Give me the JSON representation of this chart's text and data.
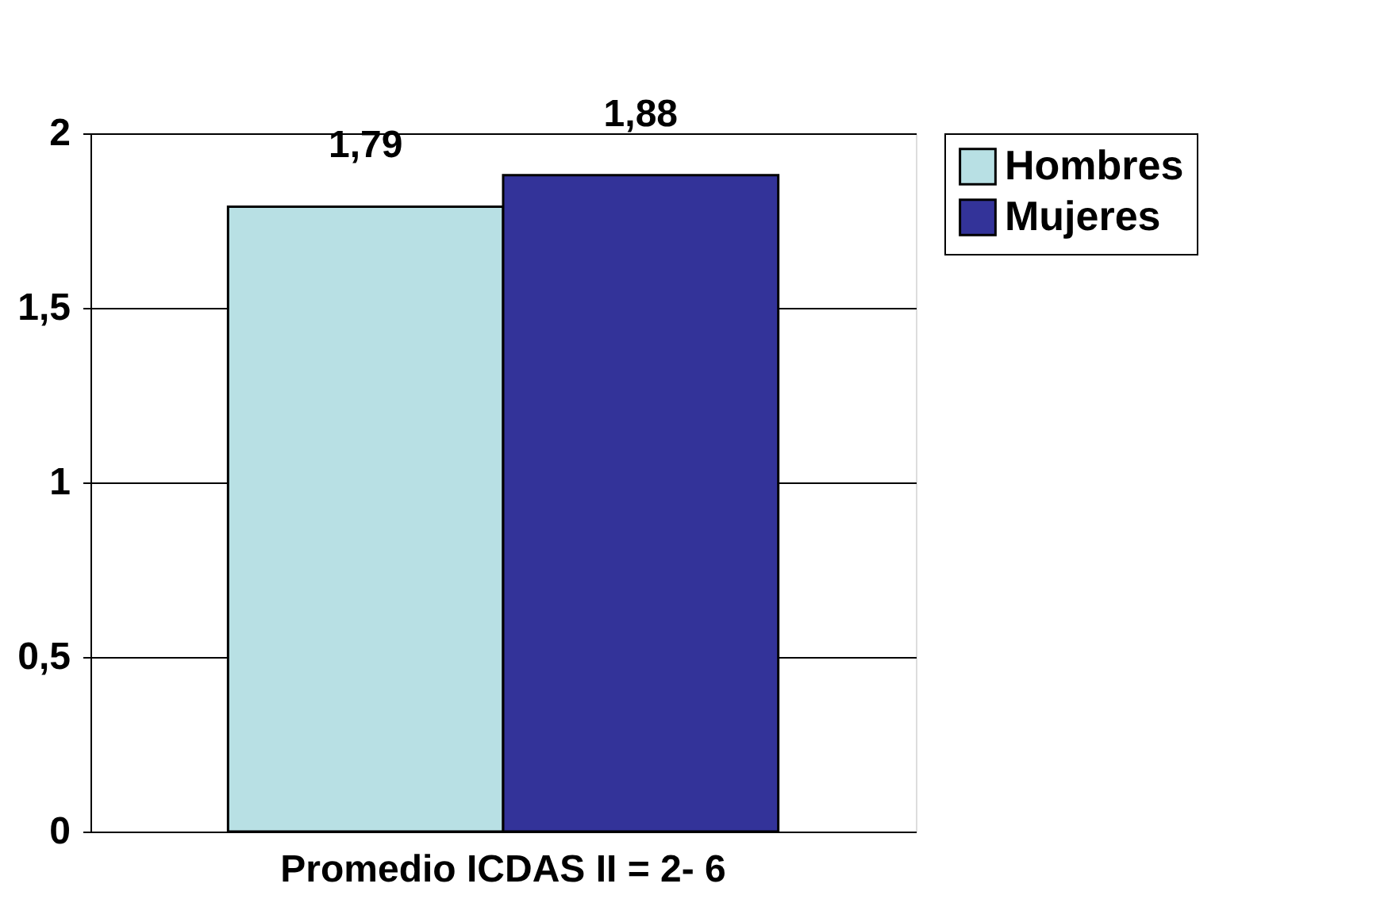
{
  "chart_data": {
    "type": "bar",
    "categories": [
      "Promedio ICDAS II = 2- 6"
    ],
    "series": [
      {
        "name": "Hombres",
        "color": "#b8e0e4",
        "values": [
          1.79
        ],
        "value_labels": [
          "1,79"
        ]
      },
      {
        "name": "Mujeres",
        "color": "#333399",
        "values": [
          1.88
        ],
        "value_labels": [
          "1,88"
        ]
      }
    ],
    "ylim": [
      0,
      2
    ],
    "yticks": [
      0,
      {
        "value": 0.5,
        "label": "0,5"
      },
      1,
      {
        "value": 1.5,
        "label": "1,5"
      },
      2
    ],
    "grid": "y",
    "legend": "right"
  }
}
